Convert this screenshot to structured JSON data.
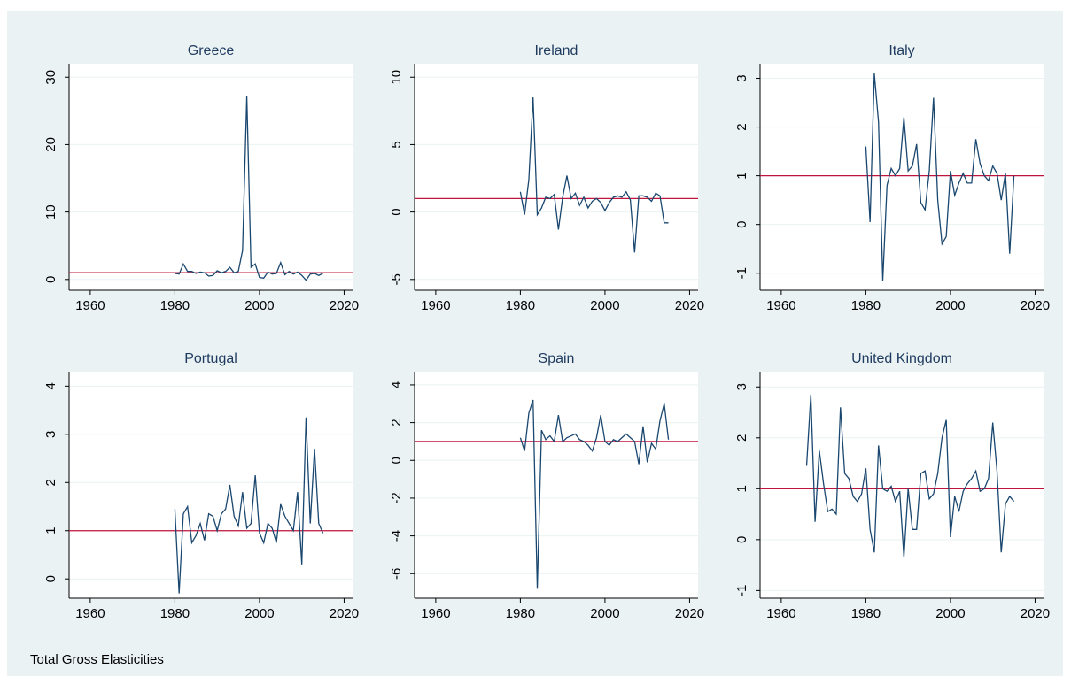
{
  "note": "Total Gross Elasticities",
  "chart_data": [
    {
      "type": "line",
      "title": "Greece",
      "x": [
        1980,
        1981,
        1982,
        1983,
        1984,
        1985,
        1986,
        1987,
        1988,
        1989,
        1990,
        1991,
        1992,
        1993,
        1994,
        1995,
        1996,
        1997,
        1998,
        1999,
        2000,
        2001,
        2002,
        2003,
        2004,
        2005,
        2006,
        2007,
        2008,
        2009,
        2010,
        2011,
        2012,
        2013,
        2014,
        2015
      ],
      "values": [
        0.9,
        0.8,
        2.3,
        1.2,
        1.2,
        0.9,
        1.1,
        1.0,
        0.5,
        0.6,
        1.3,
        1.0,
        1.2,
        1.8,
        1.0,
        1.2,
        4.3,
        27.2,
        1.8,
        2.3,
        0.3,
        0.2,
        1.1,
        0.8,
        0.9,
        2.5,
        0.7,
        1.2,
        0.8,
        1.1,
        0.6,
        -0.1,
        0.8,
        0.9,
        0.6,
        0.9
      ],
      "color": "#1a476f",
      "reference_line": {
        "value": 1,
        "color": "#c0143c"
      },
      "xlim": [
        1955,
        2022
      ],
      "xticks": [
        1960,
        1980,
        2000,
        2020
      ],
      "ylim": [
        -1.6,
        32
      ],
      "yticks": [
        0,
        10,
        20,
        30
      ],
      "grid": true
    },
    {
      "type": "line",
      "title": "Ireland",
      "x": [
        1980,
        1981,
        1982,
        1983,
        1984,
        1985,
        1986,
        1987,
        1988,
        1989,
        1990,
        1991,
        1992,
        1993,
        1994,
        1995,
        1996,
        1997,
        1998,
        1999,
        2000,
        2001,
        2002,
        2003,
        2004,
        2005,
        2006,
        2007,
        2008,
        2009,
        2010,
        2011,
        2012,
        2013,
        2014,
        2015
      ],
      "values": [
        1.5,
        -0.2,
        2.4,
        8.5,
        -0.2,
        0.3,
        1.1,
        1.0,
        1.3,
        -1.3,
        1.1,
        2.7,
        1.0,
        1.4,
        0.5,
        1.1,
        0.3,
        0.8,
        1.0,
        0.7,
        0.1,
        0.7,
        1.1,
        1.2,
        1.1,
        1.5,
        0.9,
        -3.0,
        1.2,
        1.2,
        1.1,
        0.8,
        1.4,
        1.2,
        -0.8,
        -0.8
      ],
      "color": "#1a476f",
      "reference_line": {
        "value": 1,
        "color": "#c0143c"
      },
      "xlim": [
        1955,
        2022
      ],
      "xticks": [
        1960,
        1980,
        2000,
        2020
      ],
      "ylim": [
        -5.8,
        11
      ],
      "yticks": [
        -5,
        0,
        5,
        10
      ],
      "grid": true
    },
    {
      "type": "line",
      "title": "Italy",
      "x": [
        1980,
        1981,
        1982,
        1983,
        1984,
        1985,
        1986,
        1987,
        1988,
        1989,
        1990,
        1991,
        1992,
        1993,
        1994,
        1995,
        1996,
        1997,
        1998,
        1999,
        2000,
        2001,
        2002,
        2003,
        2004,
        2005,
        2006,
        2007,
        2008,
        2009,
        2010,
        2011,
        2012,
        2013,
        2014,
        2015
      ],
      "values": [
        1.6,
        0.05,
        3.1,
        2.1,
        -1.15,
        0.8,
        1.15,
        1.0,
        1.15,
        2.2,
        1.1,
        1.2,
        1.65,
        0.45,
        0.3,
        1.1,
        2.6,
        0.5,
        -0.4,
        -0.25,
        1.1,
        0.6,
        0.85,
        1.05,
        0.85,
        0.85,
        1.75,
        1.25,
        1.0,
        0.9,
        1.2,
        1.05,
        0.5,
        1.05,
        -0.6,
        1.0
      ],
      "color": "#1a476f",
      "reference_line": {
        "value": 1,
        "color": "#c0143c"
      },
      "xlim": [
        1955,
        2022
      ],
      "xticks": [
        1960,
        1980,
        2000,
        2020
      ],
      "ylim": [
        -1.35,
        3.3
      ],
      "yticks": [
        -1,
        0,
        1,
        2,
        3
      ],
      "grid": true
    },
    {
      "type": "line",
      "title": "Portugal",
      "x": [
        1980,
        1981,
        1982,
        1983,
        1984,
        1985,
        1986,
        1987,
        1988,
        1989,
        1990,
        1991,
        1992,
        1993,
        1994,
        1995,
        1996,
        1997,
        1998,
        1999,
        2000,
        2001,
        2002,
        2003,
        2004,
        2005,
        2006,
        2007,
        2008,
        2009,
        2010,
        2011,
        2012,
        2013,
        2014,
        2015
      ],
      "values": [
        1.45,
        -0.3,
        1.35,
        1.5,
        0.75,
        0.9,
        1.15,
        0.8,
        1.35,
        1.3,
        1.0,
        1.35,
        1.45,
        1.95,
        1.3,
        1.1,
        1.8,
        1.05,
        1.15,
        2.15,
        0.95,
        0.75,
        1.15,
        1.05,
        0.75,
        1.55,
        1.3,
        1.15,
        1.0,
        1.8,
        0.3,
        3.35,
        1.15,
        2.7,
        1.15,
        0.95
      ],
      "color": "#1a476f",
      "reference_line": {
        "value": 1,
        "color": "#c0143c"
      },
      "xlim": [
        1955,
        2022
      ],
      "xticks": [
        1960,
        1980,
        2000,
        2020
      ],
      "ylim": [
        -0.4,
        4.3
      ],
      "yticks": [
        0,
        1,
        2,
        3,
        4
      ],
      "grid": true
    },
    {
      "type": "line",
      "title": "Spain",
      "x": [
        1980,
        1981,
        1982,
        1983,
        1984,
        1985,
        1986,
        1987,
        1988,
        1989,
        1990,
        1991,
        1992,
        1993,
        1994,
        1995,
        1996,
        1997,
        1998,
        1999,
        2000,
        2001,
        2002,
        2003,
        2004,
        2005,
        2006,
        2007,
        2008,
        2009,
        2010,
        2011,
        2012,
        2013,
        2014,
        2015
      ],
      "values": [
        1.2,
        0.5,
        2.5,
        3.2,
        -6.8,
        1.6,
        1.1,
        1.3,
        1.0,
        2.4,
        1.0,
        1.2,
        1.3,
        1.4,
        1.1,
        1.0,
        0.8,
        0.5,
        1.2,
        2.4,
        1.0,
        0.8,
        1.1,
        1.0,
        1.2,
        1.4,
        1.2,
        1.0,
        -0.2,
        1.8,
        -0.1,
        0.9,
        0.6,
        2.1,
        3.0,
        1.1
      ],
      "color": "#1a476f",
      "reference_line": {
        "value": 1,
        "color": "#c0143c"
      },
      "xlim": [
        1955,
        2022
      ],
      "xticks": [
        1960,
        1980,
        2000,
        2020
      ],
      "ylim": [
        -7.3,
        4.7
      ],
      "yticks": [
        -6,
        -4,
        -2,
        0,
        2,
        4
      ],
      "grid": true
    },
    {
      "type": "line",
      "title": "United Kingdom",
      "x": [
        1966,
        1967,
        1968,
        1969,
        1970,
        1971,
        1972,
        1973,
        1974,
        1975,
        1976,
        1977,
        1978,
        1979,
        1980,
        1981,
        1982,
        1983,
        1984,
        1985,
        1986,
        1987,
        1988,
        1989,
        1990,
        1991,
        1992,
        1993,
        1994,
        1995,
        1996,
        1997,
        1998,
        1999,
        2000,
        2001,
        2002,
        2003,
        2004,
        2005,
        2006,
        2007,
        2008,
        2009,
        2010,
        2011,
        2012,
        2013,
        2014,
        2015
      ],
      "values": [
        1.45,
        2.85,
        0.35,
        1.75,
        1.1,
        0.55,
        0.6,
        0.5,
        2.6,
        1.3,
        1.2,
        0.85,
        0.75,
        0.9,
        1.4,
        0.2,
        -0.25,
        1.85,
        1.0,
        0.95,
        1.05,
        0.75,
        0.95,
        -0.35,
        1.0,
        0.2,
        0.2,
        1.3,
        1.35,
        0.8,
        0.9,
        1.3,
        2.0,
        2.35,
        0.05,
        0.85,
        0.55,
        0.95,
        1.1,
        1.2,
        1.35,
        0.95,
        1.0,
        1.2,
        2.3,
        1.35,
        -0.25,
        0.7,
        0.85,
        0.75
      ],
      "color": "#1a476f",
      "reference_line": {
        "value": 1,
        "color": "#c0143c"
      },
      "xlim": [
        1955,
        2022
      ],
      "xticks": [
        1960,
        1980,
        2000,
        2020
      ],
      "ylim": [
        -1.15,
        3.3
      ],
      "yticks": [
        -1,
        0,
        1,
        2,
        3
      ],
      "grid": true
    }
  ]
}
